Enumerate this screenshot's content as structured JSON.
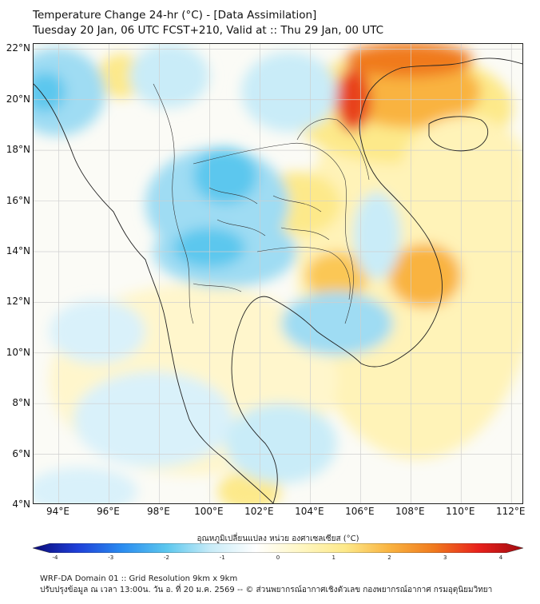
{
  "header": {
    "title": "Temperature Change 24-hr (°C) - [Data Assimilation]",
    "subtitle": "Tuesday 20 Jan, 06 UTC FCST+210, Valid at :: Thu 29 Jan, 00 UTC"
  },
  "map": {
    "lat_labels": [
      "22°N",
      "20°N",
      "18°N",
      "16°N",
      "14°N",
      "12°N",
      "10°N",
      "8°N",
      "6°N",
      "4°N"
    ],
    "lon_labels": [
      "94°E",
      "96°E",
      "98°E",
      "100°E",
      "102°E",
      "104°E",
      "106°E",
      "108°E",
      "110°E",
      "112°E"
    ],
    "colors": {
      "ocean": "#fbfbf6",
      "light_yellow": "#fff3b8",
      "yellow": "#fde98a",
      "orange": "#f9b340",
      "red": "#e8431c",
      "pale_cyan": "#d9f1fa",
      "cyan": "#9fdcf3",
      "blue": "#5cc7ee",
      "coast": "#222222"
    }
  },
  "colorbar": {
    "label": "อุณหภูมิเปลี่ยนแปลง หน่วย องศาเซลเซียส (°C)",
    "ticks": [
      "-4",
      "-3",
      "-2",
      "-1",
      "0",
      "1",
      "2",
      "3",
      "4"
    ],
    "colors": [
      "#0a0a78",
      "#1f3fd8",
      "#2a8cf0",
      "#5cc7ee",
      "#c9ecf8",
      "#ffffff",
      "#fff7c4",
      "#fde98a",
      "#f9b340",
      "#f07a1e",
      "#e8211c",
      "#a00b10"
    ]
  },
  "footer": {
    "line1": "WRF-DA Domain 01 :: Grid Resolution 9km x 9km",
    "line2": "ปรับปรุงข้อมูล ณ เวลา 13:00น. วัน อ. ที่ 20 ม.ค. 2569 -- © ส่วนพยากรณ์อากาศเชิงตัวเลข กองพยากรณ์อากาศ กรมอุตุนิยมวิทยา"
  }
}
